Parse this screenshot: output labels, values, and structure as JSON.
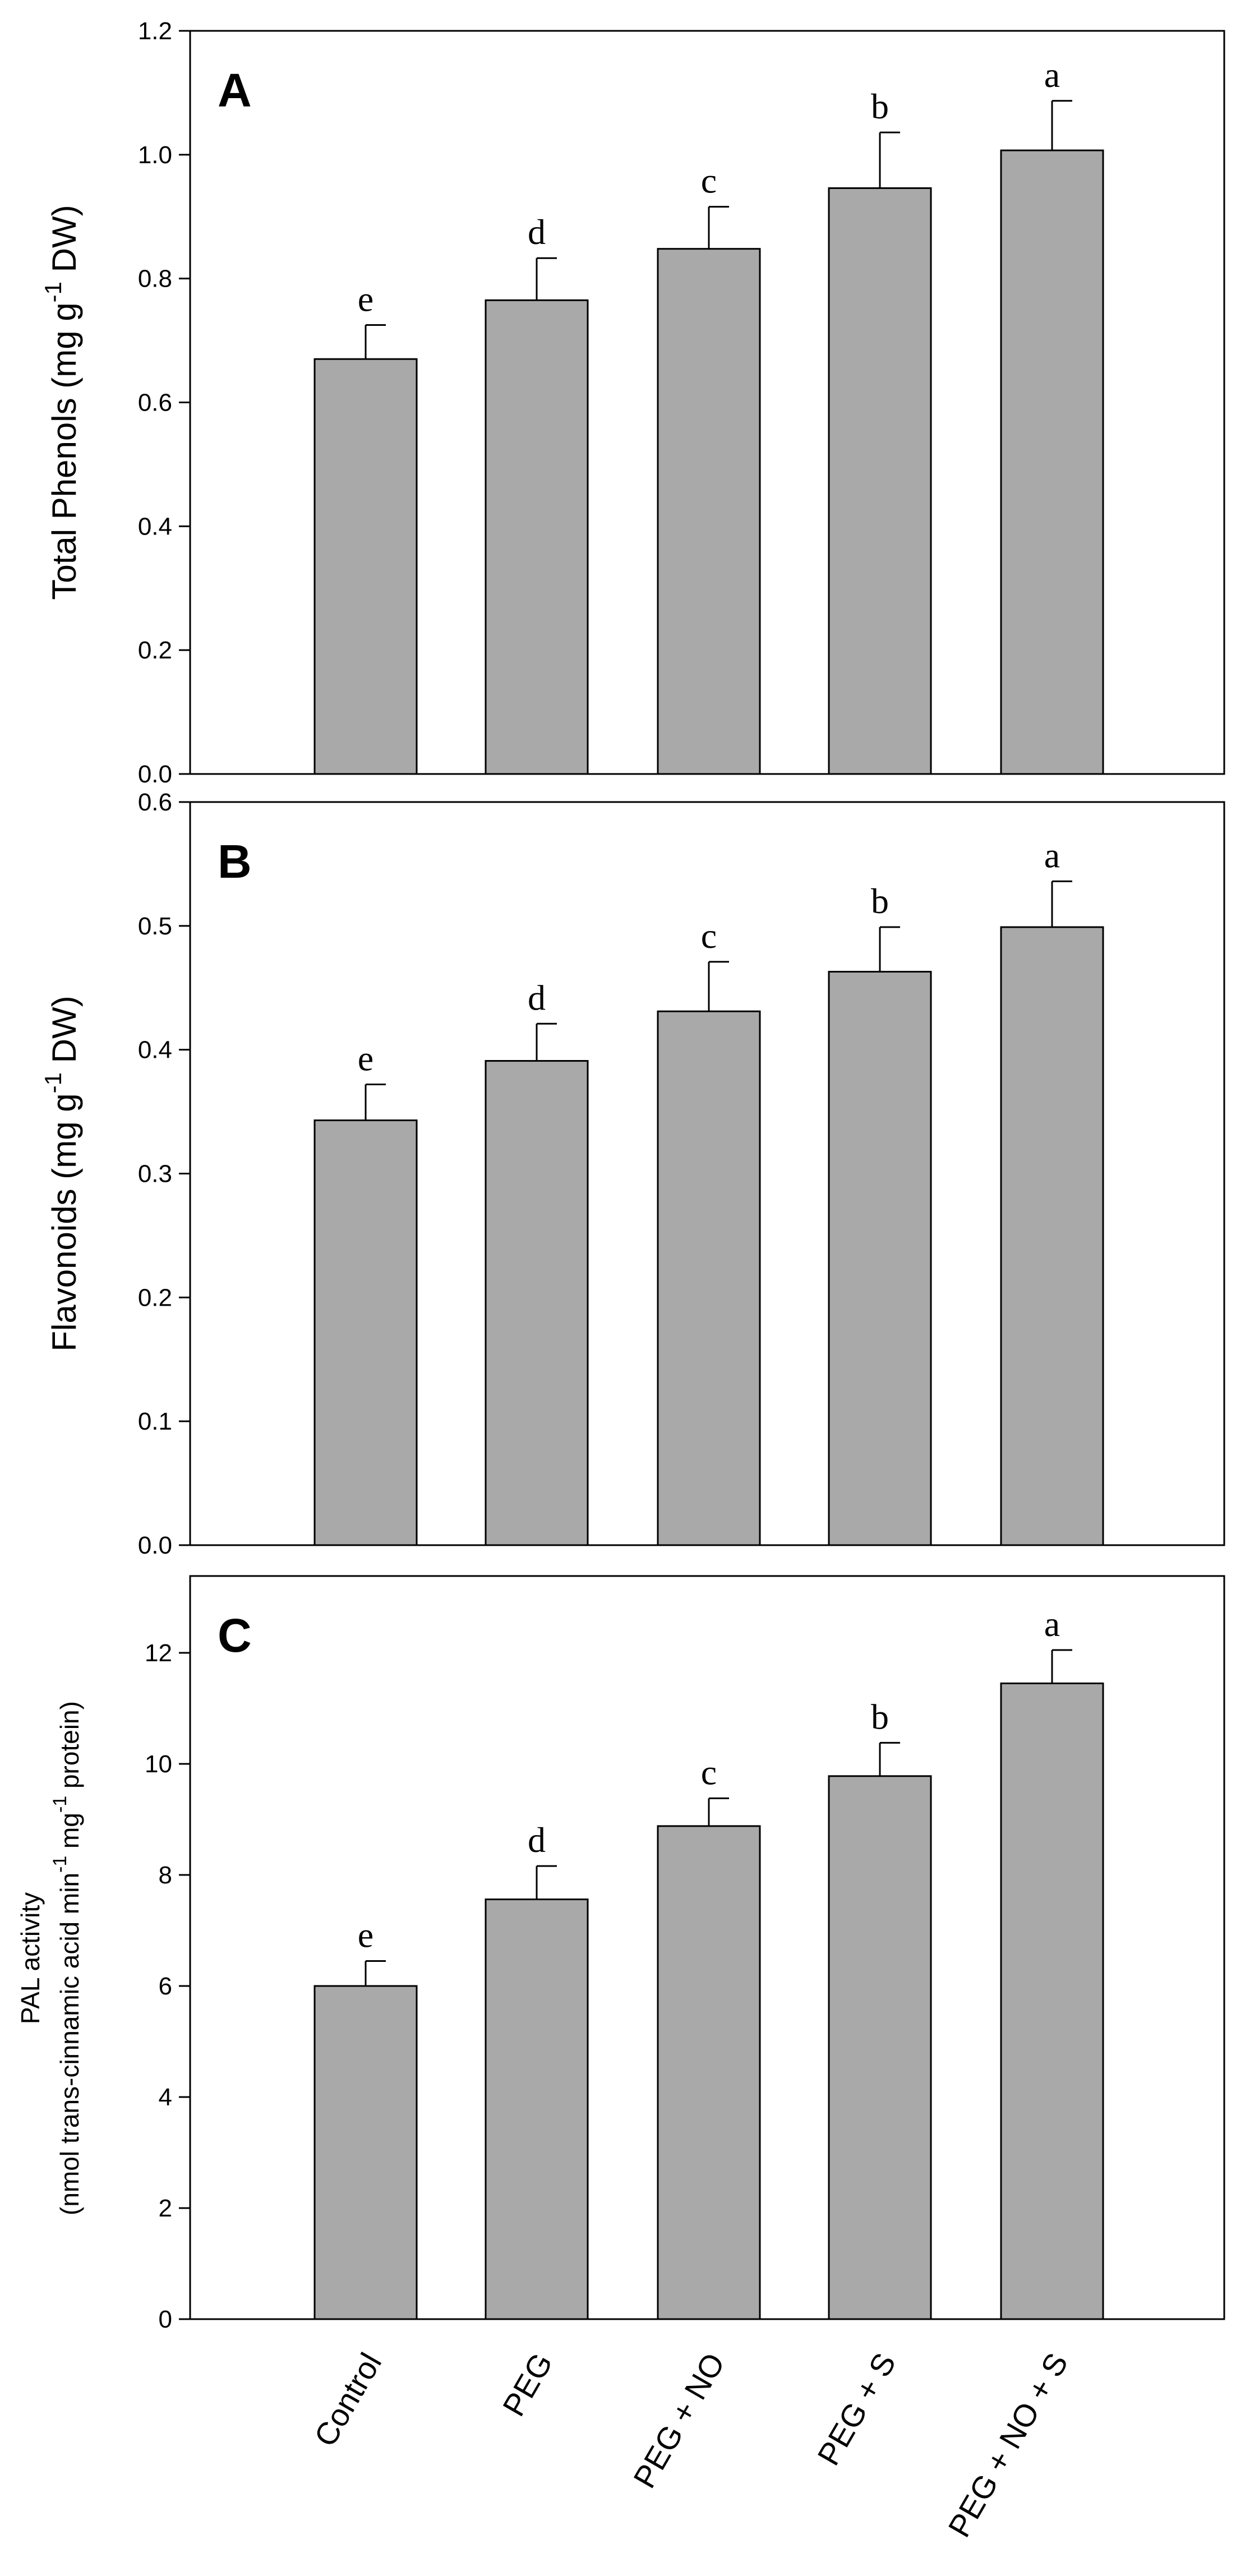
{
  "chart_data": [
    {
      "type": "bar",
      "panel": "A",
      "ylabel": "Total Phenols (mg g",
      "ylabel_sup": "-1",
      "ylabel_end": " DW)",
      "ylim": [
        0,
        1.2
      ],
      "ytick_values": [
        0,
        0.2,
        0.4,
        0.6,
        0.8,
        1.0,
        1.2
      ],
      "ytick_labels": [
        "0.0",
        "0.2",
        "0.4",
        "0.6",
        "0.8",
        "1.0",
        "1.2"
      ],
      "categories": [
        "Control",
        "PEG",
        "PEG + NO",
        "PEG + S",
        "PEG + NO + S"
      ],
      "values": [
        0.67,
        0.765,
        0.848,
        0.946,
        1.007
      ],
      "errors": [
        0.055,
        0.068,
        0.068,
        0.09,
        0.08
      ],
      "significance": [
        "e",
        "d",
        "c",
        "b",
        "a"
      ]
    },
    {
      "type": "bar",
      "panel": "B",
      "ylabel": "Flavonoids (mg g",
      "ylabel_sup": "-1",
      "ylabel_end": " DW)",
      "ylim": [
        0,
        0.6
      ],
      "ytick_values": [
        0,
        0.1,
        0.2,
        0.3,
        0.4,
        0.5,
        0.6
      ],
      "ytick_labels": [
        "0.0",
        "0.1",
        "0.2",
        "0.3",
        "0.4",
        "0.5",
        "0.6"
      ],
      "categories": [
        "Control",
        "PEG",
        "PEG + NO",
        "PEG + S",
        "PEG + NO + S"
      ],
      "values": [
        0.343,
        0.391,
        0.431,
        0.463,
        0.499
      ],
      "errors": [
        0.029,
        0.03,
        0.04,
        0.036,
        0.037
      ],
      "significance": [
        "e",
        "d",
        "c",
        "b",
        "a"
      ]
    },
    {
      "type": "bar",
      "panel": "C",
      "ylabel_line1": "PAL activity",
      "ylabel": "(nmol trans-cinnamic acid min",
      "ylabel_sup": "-1",
      "ylabel_mid": " mg",
      "ylabel_sup2": "-1",
      "ylabel_end": " protein)",
      "ylim": [
        0,
        13
      ],
      "ytick_values": [
        0,
        2,
        4,
        6,
        8,
        10,
        12
      ],
      "ytick_labels": [
        "0",
        "2",
        "4",
        "6",
        "8",
        "10",
        "12"
      ],
      "categories": [
        "Control",
        "PEG",
        "PEG + NO",
        "PEG + S",
        "PEG + NO + S"
      ],
      "values": [
        6.0,
        7.56,
        8.88,
        9.78,
        11.45
      ],
      "errors": [
        0.45,
        0.6,
        0.5,
        0.6,
        0.6
      ],
      "significance": [
        "e",
        "d",
        "c",
        "b",
        "a"
      ]
    }
  ]
}
